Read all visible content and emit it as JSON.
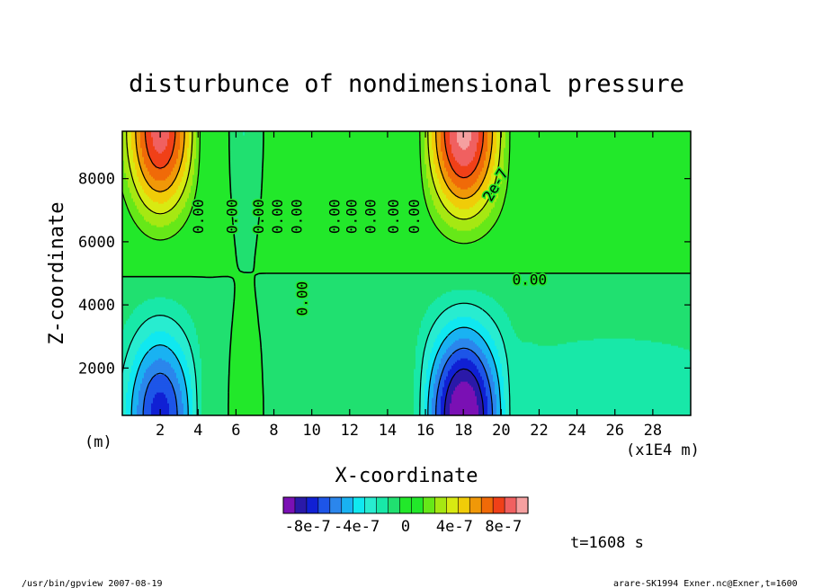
{
  "chart_data": {
    "type": "heatmap",
    "title": "disturbunce of nondimensional pressure",
    "xlabel": "X-coordinate",
    "ylabel": "Z-coordinate",
    "x_units_note": "(x1E4 m)",
    "y_units_note": "(m)",
    "xlim": [
      0,
      30
    ],
    "ylim": [
      500,
      9500
    ],
    "x_ticks": [
      "2",
      "4",
      "6",
      "8",
      "10",
      "12",
      "14",
      "16",
      "18",
      "20",
      "22",
      "24",
      "26",
      "28"
    ],
    "y_ticks": [
      "2000",
      "4000",
      "6000",
      "8000"
    ],
    "contour_labels": [
      "0.00",
      "0.00",
      "0.00",
      "0.00",
      "0.00",
      "0.00",
      "0.00",
      "0.00",
      "0.00",
      "0.00",
      "0.00",
      "0.00",
      "2e-7"
    ],
    "colorbar": {
      "levels": [
        -1e-06,
        -9e-07,
        -8e-07,
        -7e-07,
        -6e-07,
        -5e-07,
        -4e-07,
        -3e-07,
        -2e-07,
        -1e-07,
        0,
        1e-07,
        2e-07,
        3e-07,
        4e-07,
        5e-07,
        6e-07,
        7e-07,
        8e-07,
        9e-07,
        1e-06
      ],
      "colors": [
        "#7a10b4",
        "#2a19a8",
        "#1020d4",
        "#1d55e8",
        "#2b86ec",
        "#19b2f2",
        "#10e8f0",
        "#28ecd0",
        "#18e8a8",
        "#20e070",
        "#22e82a",
        "#22e82a",
        "#66e818",
        "#a6e812",
        "#d8ea12",
        "#f0cc08",
        "#f09808",
        "#f06a08",
        "#f04018",
        "#f06060",
        "#f5a0a0"
      ],
      "tick_labels": [
        "-8e-7",
        "-4e-7",
        "0",
        "4e-7",
        "8e-7"
      ]
    },
    "time_label": "t=1608 s",
    "footer_left": "/usr/bin/gpview  2007-08-19",
    "footer_right": "arare-SK1994_Exner.nc@Exner,t=1600"
  }
}
